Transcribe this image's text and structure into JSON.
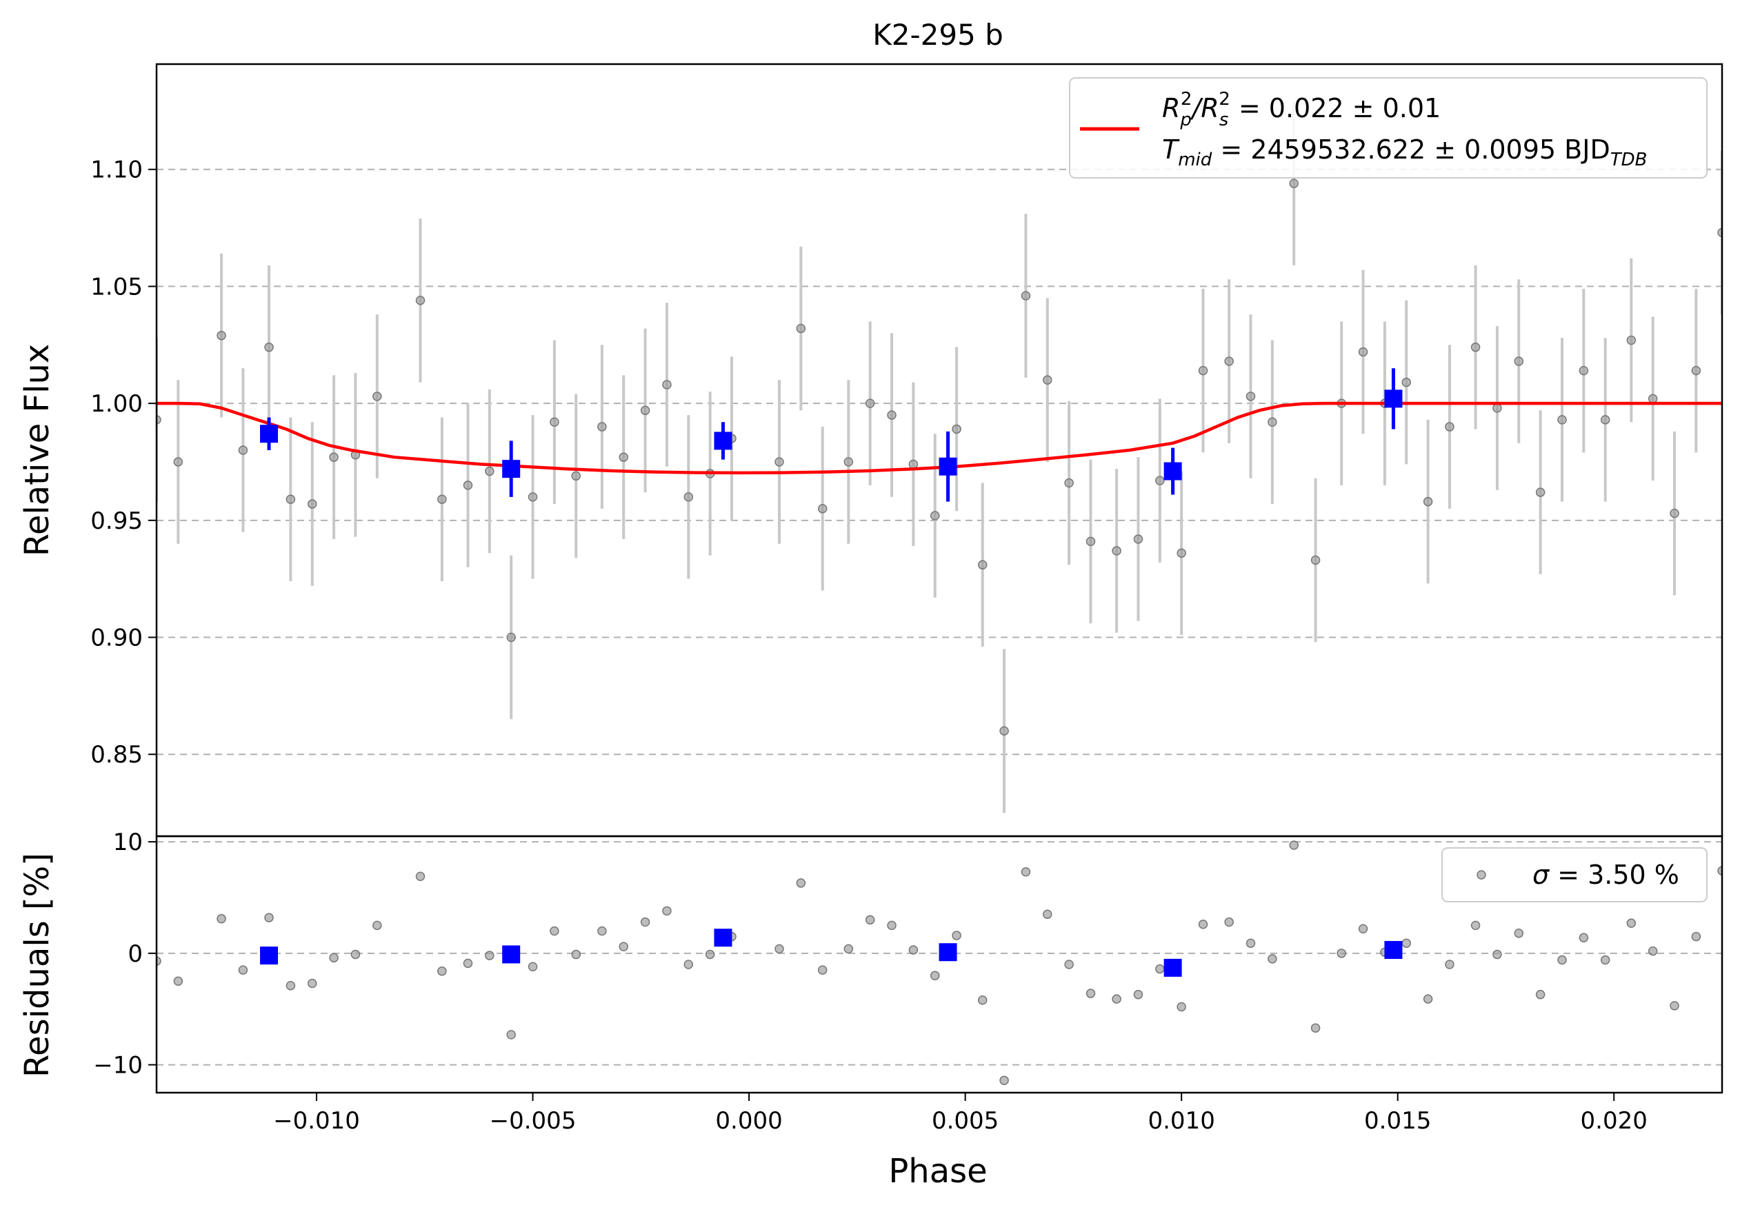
{
  "chart_data": [
    {
      "type": "scatter",
      "panel": "transit",
      "title": "K2-295 b",
      "xlabel": "",
      "ylabel": "Relative Flux",
      "xlim": [
        -0.0137,
        0.0225
      ],
      "ylim": [
        0.815,
        1.145
      ],
      "yticks": [
        0.85,
        0.9,
        0.95,
        1.0,
        1.05,
        1.1
      ],
      "ytick_labels": [
        "0.85",
        "0.90",
        "0.95",
        "1.00",
        "1.05",
        "1.10"
      ],
      "grid": "horizontal dashed",
      "legend": {
        "placement": "top-right",
        "line1": {
          "pre": "R",
          "sub1": "p",
          "sup1": "2",
          "mid": "/R",
          "sub2": "s",
          "sup2": "2",
          "post": " = 0.022 ± 0.01"
        },
        "line2": {
          "pre": "T",
          "sub1": "mid",
          "post": " = 2459532.622 ± 0.0095 BJD",
          "sub2": "TDB"
        },
        "color": "#ff0000"
      },
      "series": [
        {
          "kind": "raw",
          "color": "#999999",
          "x": [
            -0.0137,
            -0.0132,
            -0.0122,
            -0.0117,
            -0.0111,
            -0.0106,
            -0.0101,
            -0.0096,
            -0.0091,
            -0.0086,
            -0.0076,
            -0.0071,
            -0.0065,
            -0.006,
            -0.0055,
            -0.005,
            -0.0045,
            -0.004,
            -0.0034,
            -0.0029,
            -0.0024,
            -0.0019,
            -0.0014,
            -0.0009,
            -0.0004,
            0.0007,
            0.0012,
            0.0017,
            0.0023,
            0.0028,
            0.0033,
            0.0038,
            0.0043,
            0.0048,
            0.0054,
            0.0059,
            0.0064,
            0.0069,
            0.0074,
            0.0079,
            0.0085,
            0.009,
            0.0095,
            0.01,
            0.0105,
            0.0111,
            0.0116,
            0.0121,
            0.0126,
            0.0131,
            0.0137,
            0.0142,
            0.0147,
            0.0152,
            0.0157,
            0.0162,
            0.0168,
            0.0173,
            0.0178,
            0.0183,
            0.0188,
            0.0193,
            0.0198,
            0.0204,
            0.0209,
            0.0214,
            0.0219,
            0.0225
          ],
          "y": [
            0.993,
            0.975,
            1.029,
            0.98,
            1.024,
            0.959,
            0.957,
            0.977,
            0.978,
            1.003,
            1.044,
            0.959,
            0.965,
            0.971,
            0.9,
            0.96,
            0.992,
            0.969,
            0.99,
            0.977,
            0.997,
            1.008,
            0.96,
            0.97,
            0.985,
            0.975,
            1.032,
            0.955,
            0.975,
            1.0,
            0.995,
            0.974,
            0.952,
            0.989,
            0.931,
            0.86,
            1.046,
            1.01,
            0.966,
            0.941,
            0.937,
            0.942,
            0.967,
            0.936,
            1.014,
            1.018,
            1.003,
            0.992,
            1.094,
            0.933,
            1.0,
            1.022,
            1.0,
            1.009,
            0.958,
            0.99,
            1.024,
            0.998,
            1.018,
            0.962,
            0.993,
            1.014,
            0.993,
            1.027,
            1.002,
            0.953,
            1.014,
            1.073
          ],
          "yerr": 0.035
        },
        {
          "kind": "binned",
          "color": "#0000ff",
          "x": [
            -0.0111,
            -0.0055,
            -0.0006,
            0.0046,
            0.0098,
            0.0149
          ],
          "y": [
            0.987,
            0.972,
            0.984,
            0.973,
            0.971,
            1.002
          ],
          "yerr": [
            0.007,
            0.012,
            0.008,
            0.015,
            0.01,
            0.013
          ]
        },
        {
          "kind": "model",
          "color": "#ff0000",
          "x": [
            -0.0137,
            -0.0132,
            -0.0127,
            -0.0122,
            -0.0117,
            -0.0112,
            -0.0107,
            -0.0102,
            -0.0097,
            -0.0092,
            -0.0082,
            -0.0072,
            -0.0062,
            -0.0052,
            -0.0042,
            -0.0032,
            -0.0022,
            -0.0012,
            -0.0002,
            0.0008,
            0.0018,
            0.0028,
            0.0038,
            0.0048,
            0.0058,
            0.0068,
            0.0078,
            0.0088,
            0.0093,
            0.0098,
            0.0103,
            0.0108,
            0.0113,
            0.0118,
            0.0123,
            0.0128,
            0.0133,
            0.0143,
            0.016,
            0.018,
            0.02,
            0.0225
          ],
          "y": [
            1.0,
            1.0,
            0.9998,
            0.998,
            0.995,
            0.992,
            0.989,
            0.985,
            0.982,
            0.98,
            0.977,
            0.9755,
            0.974,
            0.973,
            0.972,
            0.9712,
            0.9707,
            0.9704,
            0.9703,
            0.9704,
            0.9707,
            0.9712,
            0.972,
            0.973,
            0.9745,
            0.9762,
            0.978,
            0.98,
            0.9815,
            0.983,
            0.986,
            0.99,
            0.994,
            0.997,
            0.999,
            0.9998,
            1.0,
            1.0,
            1.0,
            1.0,
            1.0,
            1.0
          ]
        }
      ]
    },
    {
      "type": "scatter",
      "panel": "residuals",
      "xlabel": "Phase",
      "ylabel": "Residuals [%]",
      "xlim": [
        -0.0137,
        0.0225
      ],
      "ylim": [
        -12.5,
        10.5
      ],
      "yticks": [
        -10,
        0,
        10
      ],
      "ytick_labels": [
        "−10",
        "0",
        "10"
      ],
      "xticks": [
        -0.01,
        -0.005,
        0.0,
        0.005,
        0.01,
        0.015,
        0.02
      ],
      "xtick_labels": [
        "−0.010",
        "−0.005",
        "0.000",
        "0.005",
        "0.010",
        "0.015",
        "0.020"
      ],
      "grid": "horizontal dashed",
      "legend": {
        "placement": "top-right",
        "symbol": "σ",
        "text": " = 3.50 %"
      },
      "series": [
        {
          "kind": "raw",
          "color": "#999999",
          "x": [
            -0.0137,
            -0.0132,
            -0.0122,
            -0.0117,
            -0.0111,
            -0.0106,
            -0.0101,
            -0.0096,
            -0.0091,
            -0.0086,
            -0.0076,
            -0.0071,
            -0.0065,
            -0.006,
            -0.0055,
            -0.005,
            -0.0045,
            -0.004,
            -0.0034,
            -0.0029,
            -0.0024,
            -0.0019,
            -0.0014,
            -0.0009,
            -0.0004,
            0.0007,
            0.0012,
            0.0017,
            0.0023,
            0.0028,
            0.0033,
            0.0038,
            0.0043,
            0.0048,
            0.0054,
            0.0059,
            0.0064,
            0.0069,
            0.0074,
            0.0079,
            0.0085,
            0.009,
            0.0095,
            0.01,
            0.0105,
            0.0111,
            0.0116,
            0.0121,
            0.0126,
            0.0131,
            0.0137,
            0.0142,
            0.0147,
            0.0152,
            0.0157,
            0.0162,
            0.0168,
            0.0173,
            0.0178,
            0.0183,
            0.0188,
            0.0193,
            0.0198,
            0.0204,
            0.0209,
            0.0214,
            0.0219,
            0.0225
          ],
          "y": [
            -0.7,
            -2.5,
            3.1,
            -1.5,
            3.2,
            -2.9,
            -2.7,
            -0.4,
            -0.1,
            2.5,
            6.9,
            -1.6,
            -0.9,
            -0.2,
            -7.3,
            -1.2,
            2.0,
            -0.1,
            2.0,
            0.6,
            2.8,
            3.8,
            -1.0,
            -0.1,
            1.5,
            0.4,
            6.3,
            -1.5,
            0.4,
            3.0,
            2.5,
            0.3,
            -2.0,
            1.6,
            -4.2,
            -11.4,
            7.3,
            3.5,
            -1.0,
            -3.6,
            -4.1,
            -3.7,
            -1.4,
            -4.8,
            2.6,
            2.8,
            0.9,
            -0.5,
            9.7,
            -6.7,
            0.0,
            2.2,
            0.1,
            0.9,
            -4.1,
            -1.0,
            2.5,
            -0.1,
            1.8,
            -3.7,
            -0.6,
            1.4,
            -0.6,
            2.7,
            0.2,
            -4.7,
            1.5,
            7.4
          ]
        },
        {
          "kind": "binned",
          "color": "#0000ff",
          "x": [
            -0.0111,
            -0.0055,
            -0.0006,
            0.0046,
            0.0098,
            0.0149
          ],
          "y": [
            -0.2,
            -0.1,
            1.4,
            0.1,
            -1.3,
            0.3
          ]
        }
      ]
    }
  ]
}
